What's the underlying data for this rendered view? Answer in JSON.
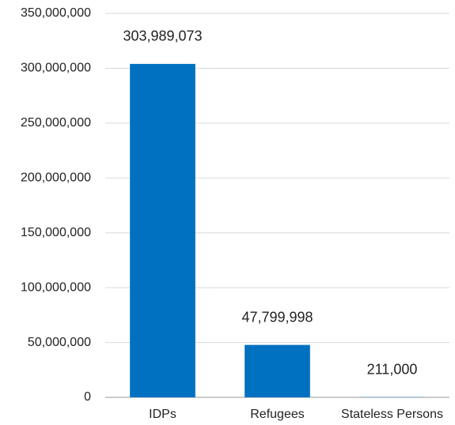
{
  "chart_data": {
    "type": "bar",
    "categories": [
      "IDPs",
      "Refugees",
      "Stateless Persons"
    ],
    "values": [
      303989073,
      47799998,
      211000
    ],
    "value_labels": [
      "303,989,073",
      "47,799,998",
      "211,000"
    ],
    "color": "#0070c0",
    "ylim": [
      0,
      350000000
    ],
    "yticks": [
      0,
      {
        "value": 50000000,
        "label": "50,000,000"
      },
      {
        "value": 100000000,
        "label": "100,000,000"
      },
      {
        "value": 150000000,
        "label": "150,000,000"
      },
      {
        "value": 200000000,
        "label": "200,000,000"
      },
      {
        "value": 250000000,
        "label": "250,000,000"
      },
      {
        "value": 300000000,
        "label": "300,000,000"
      },
      {
        "value": 350000000,
        "label": "350,000,000"
      }
    ],
    "grid": true
  }
}
